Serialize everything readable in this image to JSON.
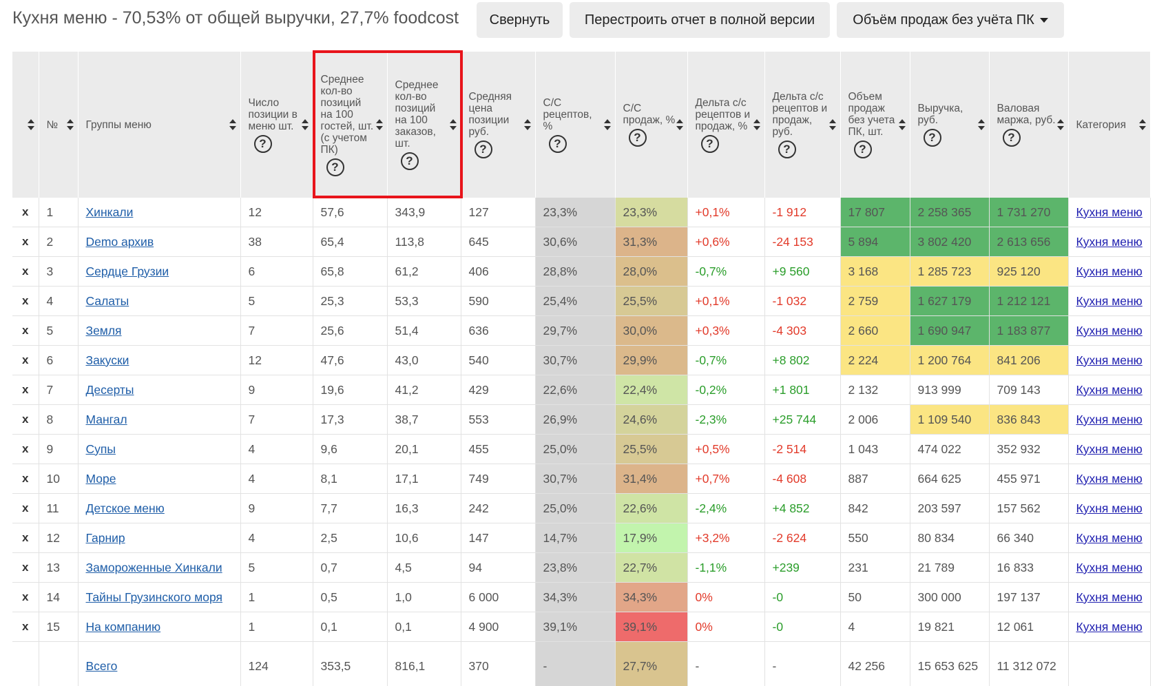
{
  "header": {
    "title": "Кухня меню - 70,53% от общей выручки, 27,7% foodcost",
    "collapse_label": "Свернуть",
    "rebuild_label": "Перестроить отчет в полной версии",
    "mode_label": "Объём продаж без учёта ПК"
  },
  "table": {
    "columns": [
      {
        "label": "",
        "help": false
      },
      {
        "label": "№",
        "help": false
      },
      {
        "label": "Группы меню",
        "help": false
      },
      {
        "label": "Число позиции в меню шт.",
        "help": true
      },
      {
        "label": "Среднее кол-во позиций на 100 гостей, шт. (с учетом ПК)",
        "help": true
      },
      {
        "label": "Среднее кол-во позиций на 100 заказов, шт.",
        "help": true
      },
      {
        "label": "Средняя цена позиции руб.",
        "help": true
      },
      {
        "label": "С/С рецептов, %",
        "help": true
      },
      {
        "label": "С/С продаж, %",
        "help": true
      },
      {
        "label": "Дельта с/с рецептов и продаж, %",
        "help": true
      },
      {
        "label": "Дельта с/с рецептов и продаж, руб.",
        "help": true
      },
      {
        "label": "Объем продаж без учета ПК, шт.",
        "help": true
      },
      {
        "label": "Выручка, руб.",
        "help": true
      },
      {
        "label": "Валовая маржа, руб.",
        "help": true
      },
      {
        "label": "Категория",
        "help": false
      }
    ],
    "remove_label": "x",
    "rows": [
      {
        "n": "1",
        "group": "Хинкали",
        "count": "12",
        "per100g": "57,6",
        "per100o": "343,9",
        "price": "127",
        "cc_rec": "23,3%",
        "cc_sales": "23,3%",
        "cc_sales_color": "#d6dca0",
        "d_pct": "+0,1%",
        "d_pct_sign": "neg",
        "d_rub": "-1 912",
        "d_rub_sign": "neg",
        "volume": "17 807",
        "volume_color": "#5cb56b",
        "revenue": "2 258 365",
        "revenue_color": "#5cb56b",
        "margin": "1 731 270",
        "margin_color": "#5cb56b",
        "category": "Кухня меню"
      },
      {
        "n": "2",
        "group": "Demo архив",
        "count": "38",
        "per100g": "65,4",
        "per100o": "113,8",
        "price": "645",
        "cc_rec": "30,6%",
        "cc_sales": "31,3%",
        "cc_sales_color": "#dcb48a",
        "d_pct": "+0,6%",
        "d_pct_sign": "neg",
        "d_rub": "-24 153",
        "d_rub_sign": "neg",
        "volume": "5 894",
        "volume_color": "#5cb56b",
        "revenue": "3 802 420",
        "revenue_color": "#5cb56b",
        "margin": "2 613 656",
        "margin_color": "#5cb56b",
        "category": "Кухня меню"
      },
      {
        "n": "3",
        "group": "Сердце Грузии",
        "count": "6",
        "per100g": "65,8",
        "per100o": "61,2",
        "price": "406",
        "cc_rec": "28,8%",
        "cc_sales": "28,0%",
        "cc_sales_color": "#dbbf8c",
        "d_pct": "-0,7%",
        "d_pct_sign": "pos",
        "d_rub": "+9 560",
        "d_rub_sign": "pos",
        "volume": "3 168",
        "volume_color": "#fbe583",
        "revenue": "1 285 723",
        "revenue_color": "#fbe583",
        "margin": "925 120",
        "margin_color": "#fbe583",
        "category": "Кухня меню"
      },
      {
        "n": "4",
        "group": "Салаты",
        "count": "5",
        "per100g": "25,3",
        "per100o": "53,3",
        "price": "590",
        "cc_rec": "25,4%",
        "cc_sales": "25,5%",
        "cc_sales_color": "#d7c994",
        "d_pct": "+0,1%",
        "d_pct_sign": "neg",
        "d_rub": "-1 032",
        "d_rub_sign": "neg",
        "volume": "2 759",
        "volume_color": "#fbe583",
        "revenue": "1 627 179",
        "revenue_color": "#5cb56b",
        "margin": "1 212 121",
        "margin_color": "#5cb56b",
        "category": "Кухня меню"
      },
      {
        "n": "5",
        "group": "Земля",
        "count": "7",
        "per100g": "25,6",
        "per100o": "51,4",
        "price": "636",
        "cc_rec": "29,7%",
        "cc_sales": "30,0%",
        "cc_sales_color": "#dbb98b",
        "d_pct": "+0,3%",
        "d_pct_sign": "neg",
        "d_rub": "-4 303",
        "d_rub_sign": "neg",
        "volume": "2 660",
        "volume_color": "#fbe583",
        "revenue": "1 690 947",
        "revenue_color": "#5cb56b",
        "margin": "1 183 877",
        "margin_color": "#5cb56b",
        "category": "Кухня меню"
      },
      {
        "n": "6",
        "group": "Закуски",
        "count": "12",
        "per100g": "47,6",
        "per100o": "43,0",
        "price": "540",
        "cc_rec": "30,7%",
        "cc_sales": "29,9%",
        "cc_sales_color": "#dbb98b",
        "d_pct": "-0,7%",
        "d_pct_sign": "pos",
        "d_rub": "+8 802",
        "d_rub_sign": "pos",
        "volume": "2 224",
        "volume_color": "#fbe583",
        "revenue": "1 200 764",
        "revenue_color": "#fbe583",
        "margin": "841 206",
        "margin_color": "#fbe583",
        "category": "Кухня меню"
      },
      {
        "n": "7",
        "group": "Десерты",
        "count": "9",
        "per100g": "19,6",
        "per100o": "41,2",
        "price": "429",
        "cc_rec": "22,6%",
        "cc_sales": "22,4%",
        "cc_sales_color": "#cfe5a6",
        "d_pct": "-0,2%",
        "d_pct_sign": "pos",
        "d_rub": "+1 801",
        "d_rub_sign": "pos",
        "volume": "2 132",
        "volume_color": "",
        "revenue": "913 999",
        "revenue_color": "",
        "margin": "709 143",
        "margin_color": "",
        "category": "Кухня меню"
      },
      {
        "n": "8",
        "group": "Мангал",
        "count": "7",
        "per100g": "17,3",
        "per100o": "38,7",
        "price": "553",
        "cc_rec": "26,9%",
        "cc_sales": "24,6%",
        "cc_sales_color": "#d4d39b",
        "d_pct": "-2,3%",
        "d_pct_sign": "pos",
        "d_rub": "+25 744",
        "d_rub_sign": "pos",
        "volume": "2 006",
        "volume_color": "",
        "revenue": "1 109 540",
        "revenue_color": "#fbe583",
        "margin": "836 843",
        "margin_color": "#fbe583",
        "category": "Кухня меню"
      },
      {
        "n": "9",
        "group": "Супы",
        "count": "4",
        "per100g": "9,6",
        "per100o": "20,1",
        "price": "455",
        "cc_rec": "25,0%",
        "cc_sales": "25,5%",
        "cc_sales_color": "#d7c994",
        "d_pct": "+0,5%",
        "d_pct_sign": "neg",
        "d_rub": "-2 514",
        "d_rub_sign": "neg",
        "volume": "1 043",
        "volume_color": "",
        "revenue": "474 022",
        "revenue_color": "",
        "margin": "352 932",
        "margin_color": "",
        "category": "Кухня меню"
      },
      {
        "n": "10",
        "group": "Море",
        "count": "4",
        "per100g": "8,1",
        "per100o": "17,1",
        "price": "749",
        "cc_rec": "30,7%",
        "cc_sales": "31,4%",
        "cc_sales_color": "#dcb48a",
        "d_pct": "+0,7%",
        "d_pct_sign": "neg",
        "d_rub": "-4 608",
        "d_rub_sign": "neg",
        "volume": "887",
        "volume_color": "",
        "revenue": "664 625",
        "revenue_color": "",
        "margin": "455 971",
        "margin_color": "",
        "category": "Кухня меню"
      },
      {
        "n": "11",
        "group": "Детское меню",
        "count": "9",
        "per100g": "7,7",
        "per100o": "16,3",
        "price": "242",
        "cc_rec": "25,0%",
        "cc_sales": "22,6%",
        "cc_sales_color": "#cfe4a5",
        "d_pct": "-2,4%",
        "d_pct_sign": "pos",
        "d_rub": "+4 852",
        "d_rub_sign": "pos",
        "volume": "842",
        "volume_color": "",
        "revenue": "203 597",
        "revenue_color": "",
        "margin": "157 562",
        "margin_color": "",
        "category": "Кухня меню"
      },
      {
        "n": "12",
        "group": "Гарнир",
        "count": "4",
        "per100g": "2,5",
        "per100o": "10,6",
        "price": "147",
        "cc_rec": "14,7%",
        "cc_sales": "17,9%",
        "cc_sales_color": "#c2f4ad",
        "d_pct": "+3,2%",
        "d_pct_sign": "neg",
        "d_rub": "-2 624",
        "d_rub_sign": "neg",
        "volume": "550",
        "volume_color": "",
        "revenue": "80 834",
        "revenue_color": "",
        "margin": "66 340",
        "margin_color": "",
        "category": "Кухня меню"
      },
      {
        "n": "13",
        "group": "Замороженные Хинкали",
        "count": "5",
        "per100g": "0,7",
        "per100o": "4,5",
        "price": "94",
        "cc_rec": "23,8%",
        "cc_sales": "22,7%",
        "cc_sales_color": "#d0e3a4",
        "d_pct": "-1,1%",
        "d_pct_sign": "pos",
        "d_rub": "+239",
        "d_rub_sign": "pos",
        "volume": "231",
        "volume_color": "",
        "revenue": "21 789",
        "revenue_color": "",
        "margin": "16 833",
        "margin_color": "",
        "category": "Кухня меню"
      },
      {
        "n": "14",
        "group": "Тайны Грузинского моря",
        "count": "1",
        "per100g": "0,5",
        "per100o": "1,0",
        "price": "6 000",
        "cc_rec": "34,3%",
        "cc_sales": "34,3%",
        "cc_sales_color": "#e2a688",
        "d_pct": "0%",
        "d_pct_sign": "neg",
        "d_rub": "-0",
        "d_rub_sign": "pos",
        "volume": "50",
        "volume_color": "",
        "revenue": "300 000",
        "revenue_color": "",
        "margin": "197 137",
        "margin_color": "",
        "category": "Кухня меню"
      },
      {
        "n": "15",
        "group": "На компанию",
        "count": "1",
        "per100g": "0,1",
        "per100o": "0,1",
        "price": "4 900",
        "cc_rec": "39,1%",
        "cc_sales": "39,1%",
        "cc_sales_color": "#ee6b6b",
        "d_pct": "0%",
        "d_pct_sign": "neg",
        "d_rub": "-0",
        "d_rub_sign": "pos",
        "volume": "4",
        "volume_color": "",
        "revenue": "19 821",
        "revenue_color": "",
        "margin": "12 061",
        "margin_color": "",
        "category": "Кухня меню"
      }
    ],
    "total": {
      "group": "Всего",
      "count": "124",
      "per100g": "353,5",
      "per100o": "816,1",
      "price": "370",
      "cc_rec": "-",
      "cc_sales": "27,7%",
      "d_pct": "-",
      "d_rub": "-",
      "volume": "42 256",
      "revenue": "15 653 625",
      "margin": "11 312 072",
      "category": ""
    },
    "cc_rec_color": "#d6d6d6",
    "help_glyph": "?"
  },
  "colors": {
    "highlight_border": "#e8141b",
    "positive": "#2a9d2a",
    "negative": "#e23a2a",
    "good": "#5cb56b",
    "ok": "#fbe583"
  }
}
